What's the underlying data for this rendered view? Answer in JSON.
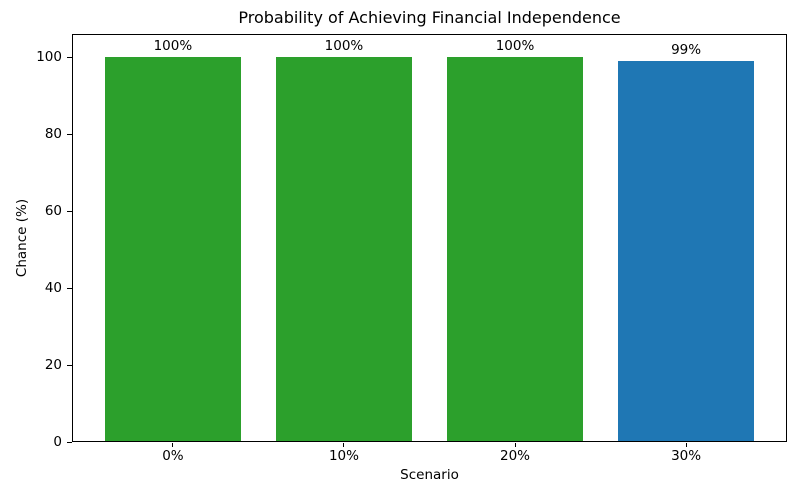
{
  "chart_data": {
    "type": "bar",
    "title": "Probability of Achieving Financial Independence",
    "xlabel": "Scenario",
    "ylabel": "Chance (%)",
    "categories": [
      "0%",
      "10%",
      "20%",
      "30%"
    ],
    "values": [
      100,
      100,
      100,
      99
    ],
    "bar_labels": [
      "100%",
      "100%",
      "100%",
      "99%"
    ],
    "bar_colors": [
      "#2ca02c",
      "#2ca02c",
      "#2ca02c",
      "#1f77b4"
    ],
    "yticks": [
      0,
      20,
      40,
      60,
      80,
      100
    ],
    "ylim": [
      0,
      106
    ],
    "xlim": [
      -0.59,
      3.59
    ],
    "bar_width": 0.8,
    "grid": false,
    "legend": null,
    "background_color": "#ffffff",
    "text_color": "#000000"
  }
}
